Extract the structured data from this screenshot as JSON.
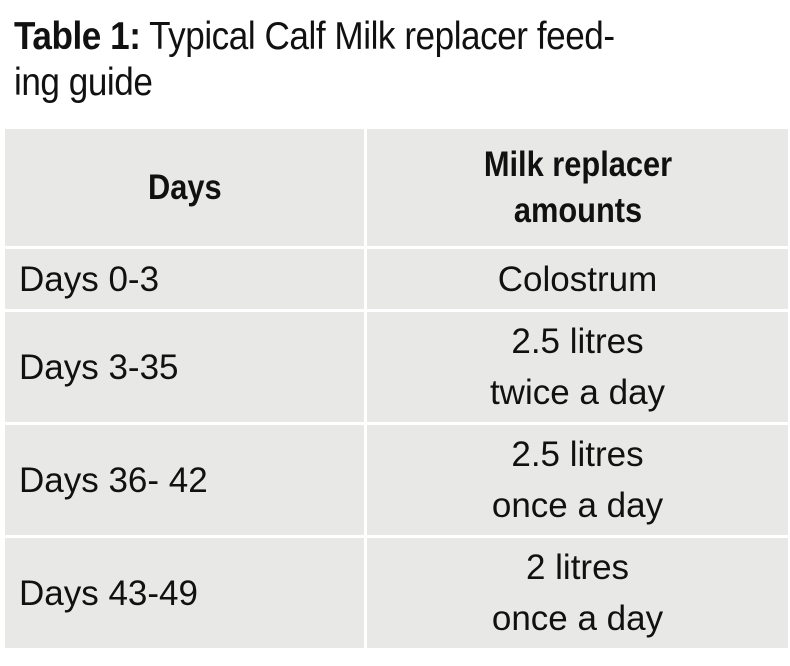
{
  "title": {
    "label": "Table 1:",
    "text_line1": "Typical Calf Milk replacer feed-",
    "text_line2": "ing guide"
  },
  "table": {
    "headers": {
      "days": "Days",
      "amount_line1": "Milk replacer",
      "amount_line2": "amounts"
    },
    "rows": [
      {
        "days": "Days 0-3",
        "amount_line1": "Colostrum",
        "amount_line2": ""
      },
      {
        "days": "Days 3-35",
        "amount_line1": "2.5 litres",
        "amount_line2": "twice a day"
      },
      {
        "days": "Days 36- 42",
        "amount_line1": "2.5 litres",
        "amount_line2": "once a day"
      },
      {
        "days": "Days 43-49",
        "amount_line1": "2 litres",
        "amount_line2": "once a day"
      }
    ]
  },
  "colors": {
    "cell_background": "#e8e8e6",
    "grid_lines": "#ffffff",
    "text": "#111111"
  }
}
